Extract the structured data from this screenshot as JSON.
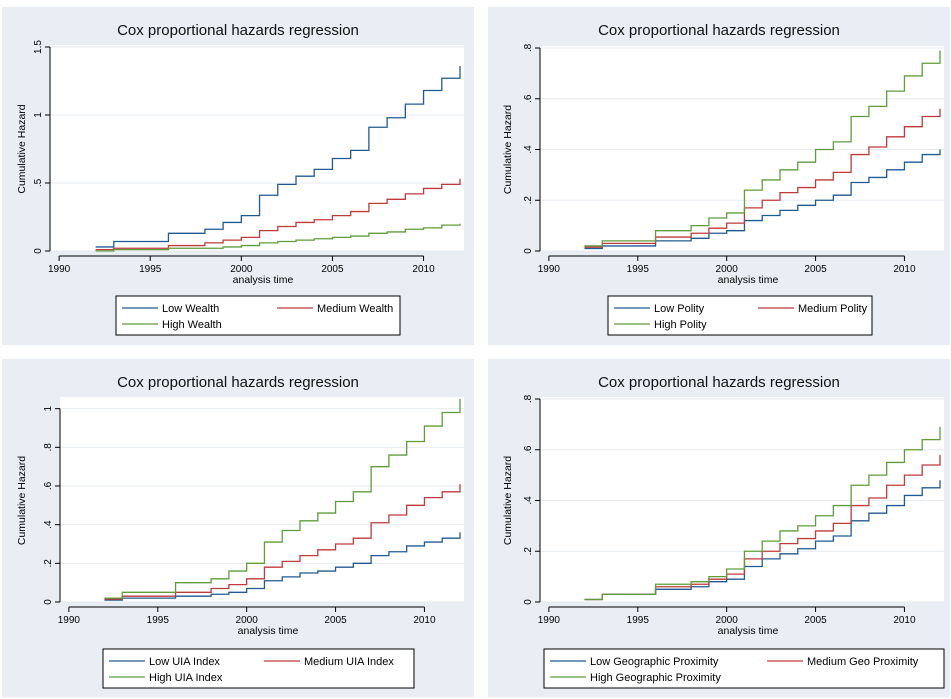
{
  "chart_data": [
    {
      "type": "line",
      "title": "Cox proportional hazards regression",
      "xlabel": "analysis time",
      "ylabel": "Cumulative Hazard",
      "xlim": [
        1989.5,
        2012
      ],
      "ylim": [
        0,
        1.5
      ],
      "xticks": [
        1990,
        1995,
        2000,
        2005,
        2010
      ],
      "xtick_labels": [
        "1990",
        "1995",
        "2000",
        "2005",
        "2010"
      ],
      "yticks": [
        0,
        0.5,
        1,
        1.5
      ],
      "ytick_labels": [
        "0",
        ".5",
        "1",
        "1.5"
      ],
      "x": [
        1992,
        1993,
        1994,
        1995,
        1996,
        1997,
        1998,
        1999,
        2000,
        2001,
        2002,
        2003,
        2004,
        2005,
        2006,
        2007,
        2008,
        2009,
        2010,
        2011,
        2012
      ],
      "series": [
        {
          "name": "Low Wealth",
          "color": "#1f5a96",
          "values": [
            0.03,
            0.07,
            0.07,
            0.07,
            0.13,
            0.13,
            0.16,
            0.21,
            0.26,
            0.41,
            0.49,
            0.55,
            0.6,
            0.68,
            0.74,
            0.91,
            0.98,
            1.08,
            1.18,
            1.27,
            1.36
          ]
        },
        {
          "name": "Medium Wealth",
          "color": "#c03a3a",
          "values": [
            0.01,
            0.02,
            0.02,
            0.02,
            0.04,
            0.04,
            0.06,
            0.08,
            0.1,
            0.15,
            0.18,
            0.21,
            0.23,
            0.26,
            0.29,
            0.35,
            0.38,
            0.42,
            0.46,
            0.49,
            0.53
          ]
        },
        {
          "name": "High Wealth",
          "color": "#5e9e3a",
          "values": [
            0.0,
            0.01,
            0.01,
            0.01,
            0.02,
            0.02,
            0.02,
            0.03,
            0.04,
            0.06,
            0.07,
            0.08,
            0.09,
            0.1,
            0.11,
            0.13,
            0.14,
            0.16,
            0.17,
            0.19,
            0.2
          ]
        }
      ]
    },
    {
      "type": "line",
      "title": "Cox proportional hazards regression",
      "xlabel": "analysis time",
      "ylabel": "Cumulative Hazard",
      "xlim": [
        1989.5,
        2012
      ],
      "ylim": [
        0,
        0.8
      ],
      "xticks": [
        1990,
        1995,
        2000,
        2005,
        2010
      ],
      "xtick_labels": [
        "1990",
        "1995",
        "2000",
        "2005",
        "2010"
      ],
      "yticks": [
        0,
        0.2,
        0.4,
        0.6,
        0.8
      ],
      "ytick_labels": [
        "0",
        ".2",
        ".4",
        ".6",
        ".8"
      ],
      "x": [
        1992,
        1993,
        1994,
        1995,
        1996,
        1997,
        1998,
        1999,
        2000,
        2001,
        2002,
        2003,
        2004,
        2005,
        2006,
        2007,
        2008,
        2009,
        2010,
        2011,
        2012
      ],
      "series": [
        {
          "name": "Low Polity",
          "color": "#1f5a96",
          "values": [
            0.01,
            0.02,
            0.02,
            0.02,
            0.04,
            0.04,
            0.05,
            0.07,
            0.08,
            0.12,
            0.14,
            0.16,
            0.18,
            0.2,
            0.22,
            0.27,
            0.29,
            0.32,
            0.35,
            0.38,
            0.4
          ]
        },
        {
          "name": "Medium Polity",
          "color": "#c03a3a",
          "values": [
            0.015,
            0.03,
            0.03,
            0.03,
            0.055,
            0.055,
            0.07,
            0.09,
            0.11,
            0.17,
            0.2,
            0.23,
            0.25,
            0.28,
            0.31,
            0.38,
            0.41,
            0.45,
            0.49,
            0.53,
            0.56
          ]
        },
        {
          "name": "High Polity",
          "color": "#5e9e3a",
          "values": [
            0.02,
            0.04,
            0.04,
            0.04,
            0.08,
            0.08,
            0.1,
            0.13,
            0.15,
            0.24,
            0.28,
            0.32,
            0.35,
            0.4,
            0.43,
            0.53,
            0.57,
            0.63,
            0.69,
            0.74,
            0.79
          ]
        }
      ]
    },
    {
      "type": "line",
      "title": "Cox proportional hazards regression",
      "xlabel": "analysis time",
      "ylabel": "Cumulative Hazard",
      "xlim": [
        1989.5,
        2012
      ],
      "ylim": [
        0,
        1.05
      ],
      "xticks": [
        1990,
        1995,
        2000,
        2005,
        2010
      ],
      "xtick_labels": [
        "1990",
        "1995",
        "2000",
        "2005",
        "2010"
      ],
      "yticks": [
        0,
        0.2,
        0.4,
        0.6,
        0.8,
        1
      ],
      "ytick_labels": [
        "0",
        ".2",
        ".4",
        ".6",
        ".8",
        "1"
      ],
      "x": [
        1992,
        1993,
        1994,
        1995,
        1996,
        1997,
        1998,
        1999,
        2000,
        2001,
        2002,
        2003,
        2004,
        2005,
        2006,
        2007,
        2008,
        2009,
        2010,
        2011,
        2012
      ],
      "series": [
        {
          "name": "Low UIA Index",
          "color": "#1f5a96",
          "values": [
            0.01,
            0.02,
            0.02,
            0.02,
            0.03,
            0.03,
            0.04,
            0.05,
            0.07,
            0.11,
            0.13,
            0.15,
            0.16,
            0.18,
            0.2,
            0.24,
            0.26,
            0.29,
            0.31,
            0.33,
            0.36
          ]
        },
        {
          "name": "Medium UIA Index",
          "color": "#c03a3a",
          "values": [
            0.015,
            0.03,
            0.03,
            0.03,
            0.05,
            0.05,
            0.07,
            0.09,
            0.12,
            0.18,
            0.21,
            0.24,
            0.27,
            0.3,
            0.33,
            0.41,
            0.45,
            0.5,
            0.54,
            0.57,
            0.61
          ]
        },
        {
          "name": "High UIA Index",
          "color": "#5e9e3a",
          "values": [
            0.02,
            0.05,
            0.05,
            0.05,
            0.1,
            0.1,
            0.12,
            0.16,
            0.2,
            0.31,
            0.37,
            0.42,
            0.46,
            0.52,
            0.57,
            0.7,
            0.76,
            0.83,
            0.91,
            0.98,
            1.05
          ]
        }
      ]
    },
    {
      "type": "line",
      "title": "Cox proportional hazards regression",
      "xlabel": "analysis time",
      "ylabel": "Cumulative Hazard",
      "xlim": [
        1989.5,
        2012
      ],
      "ylim": [
        0,
        0.8
      ],
      "xticks": [
        1990,
        1995,
        2000,
        2005,
        2010
      ],
      "xtick_labels": [
        "1990",
        "1995",
        "2000",
        "2005",
        "2010"
      ],
      "yticks": [
        0,
        0.2,
        0.4,
        0.6,
        0.8
      ],
      "ytick_labels": [
        "0",
        ".2",
        ".4",
        ".6",
        ".8"
      ],
      "x": [
        1992,
        1993,
        1994,
        1995,
        1996,
        1997,
        1998,
        1999,
        2000,
        2001,
        2002,
        2003,
        2004,
        2005,
        2006,
        2007,
        2008,
        2009,
        2010,
        2011,
        2012
      ],
      "series": [
        {
          "name": "Low Geographic Proximity",
          "color": "#1f5a96",
          "values": [
            0.01,
            0.03,
            0.03,
            0.03,
            0.05,
            0.05,
            0.06,
            0.08,
            0.09,
            0.14,
            0.17,
            0.19,
            0.21,
            0.24,
            0.26,
            0.32,
            0.35,
            0.38,
            0.42,
            0.45,
            0.48
          ]
        },
        {
          "name": "Medium Geo Proximity",
          "color": "#c03a3a",
          "values": [
            0.01,
            0.03,
            0.03,
            0.03,
            0.06,
            0.06,
            0.07,
            0.09,
            0.11,
            0.17,
            0.2,
            0.23,
            0.25,
            0.28,
            0.31,
            0.38,
            0.41,
            0.46,
            0.5,
            0.54,
            0.58
          ]
        },
        {
          "name": "High Geographic Proximity",
          "color": "#5e9e3a",
          "values": [
            0.01,
            0.03,
            0.03,
            0.03,
            0.07,
            0.07,
            0.08,
            0.1,
            0.13,
            0.2,
            0.24,
            0.28,
            0.3,
            0.34,
            0.38,
            0.46,
            0.5,
            0.55,
            0.6,
            0.64,
            0.69
          ]
        }
      ]
    }
  ]
}
